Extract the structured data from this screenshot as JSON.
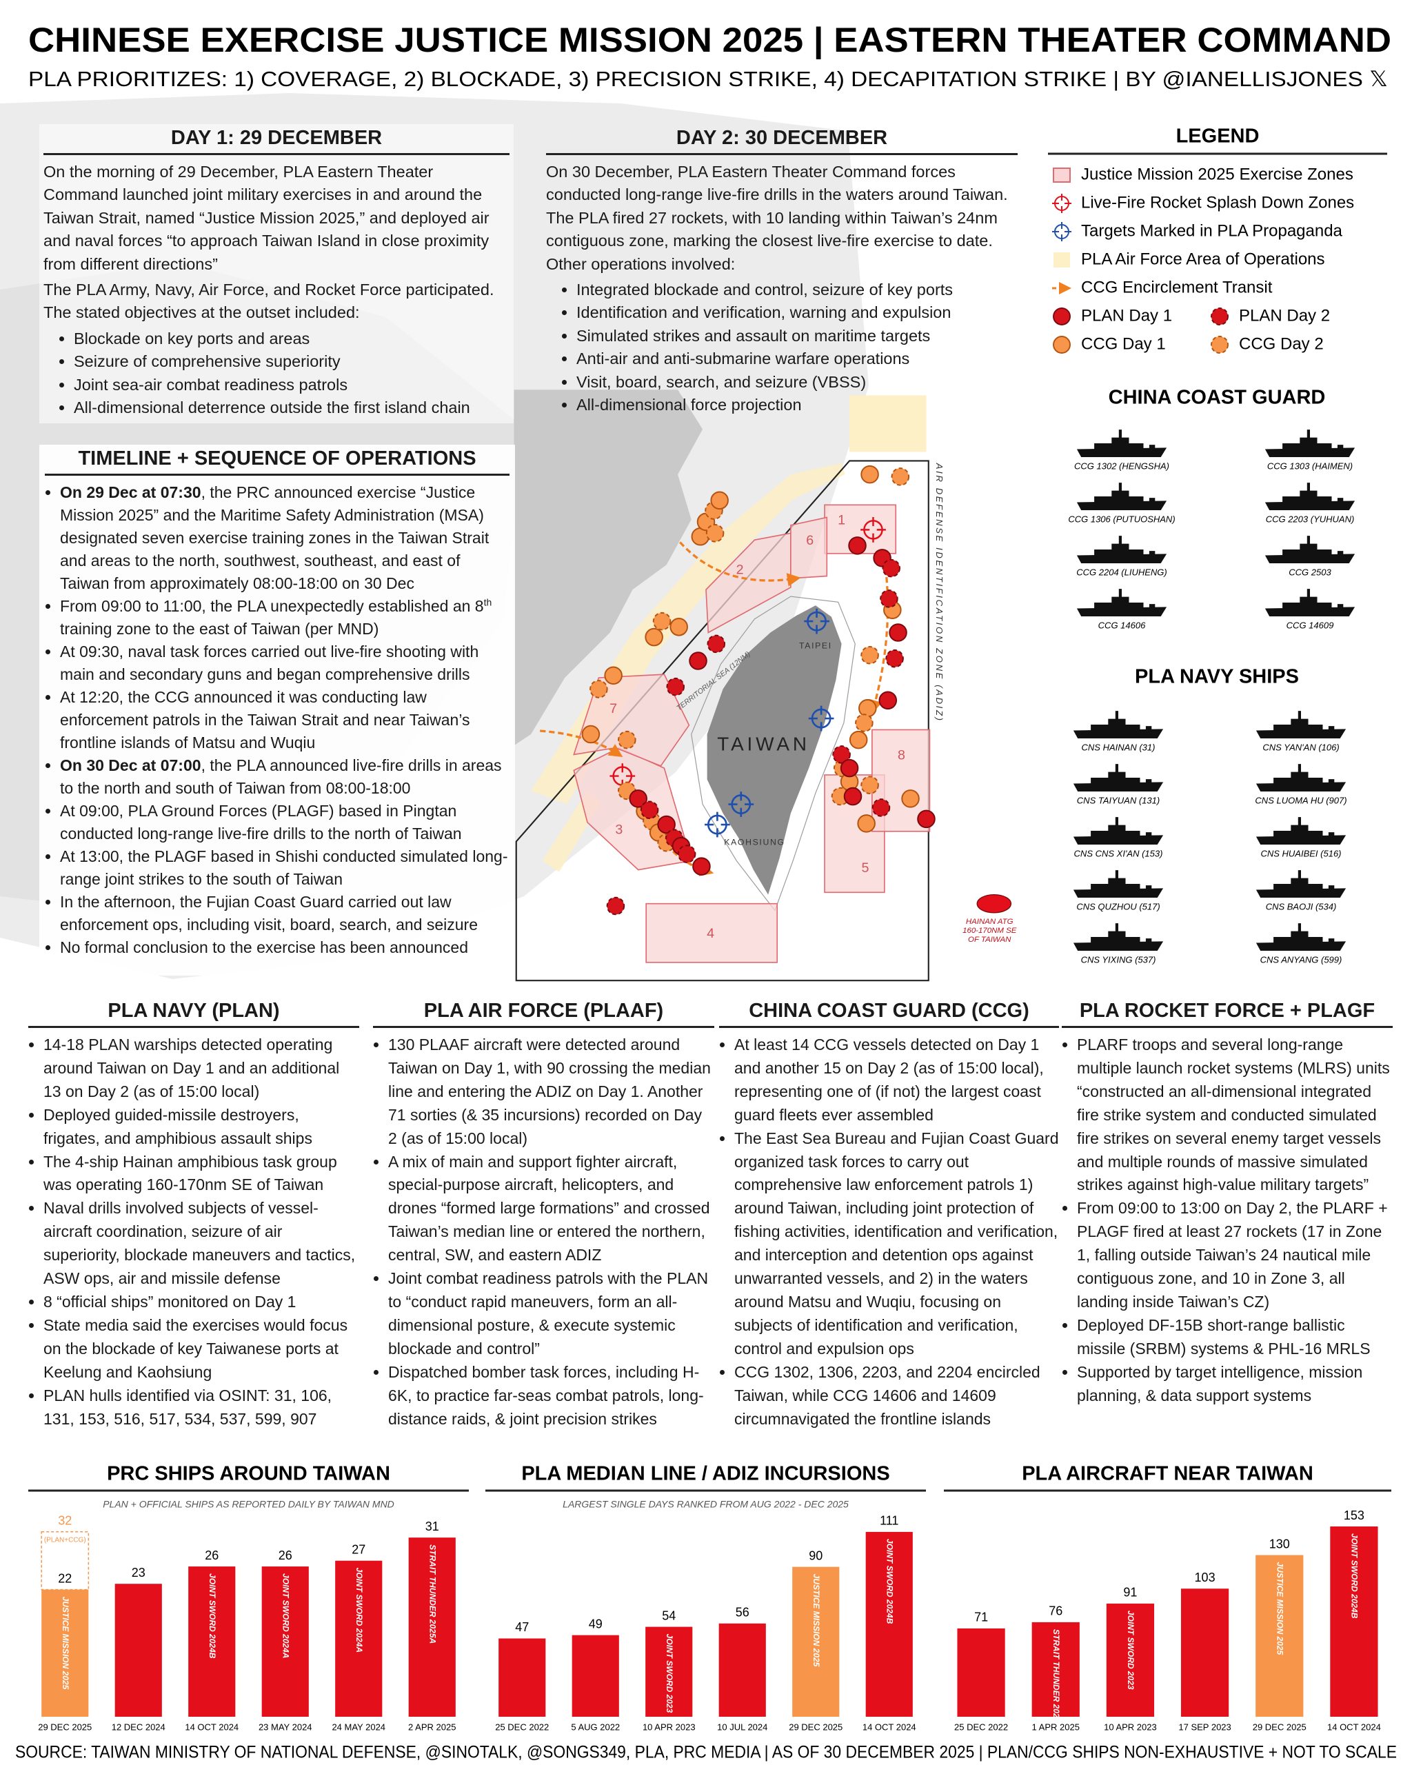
{
  "header": {
    "title": "CHINESE EXERCISE JUSTICE MISSION 2025 | EASTERN THEATER COMMAND",
    "subtitle": "PLA PRIORITIZES: 1) COVERAGE, 2) BLOCKADE, 3) PRECISION STRIKE, 4) DECAPITATION STRIKE | BY @IANELLISJONES 𝕏"
  },
  "day1": {
    "title": "DAY 1: 29 DECEMBER",
    "paragraphs": [
      "On the morning of 29 December, PLA Eastern Theater Command launched joint military exercises in and around the Taiwan Strait, named “Justice Mission 2025,” and deployed air and naval forces “to approach Taiwan Island in close proximity from different directions”",
      "The PLA Army, Navy, Air Force, and Rocket Force participated. The stated objectives at the outset included:"
    ],
    "bullets": [
      "Blockade on key ports and areas",
      "Seizure of comprehensive superiority",
      "Joint sea-air combat readiness patrols",
      "All-dimensional deterrence outside the first island chain"
    ]
  },
  "day2": {
    "title": "DAY 2: 30 DECEMBER",
    "paragraph": "On 30 December, PLA Eastern Theater Command forces conducted long-range live-fire drills in the waters around Taiwan. The PLA fired 27 rockets, with 10 landing within Taiwan’s 24nm contiguous zone, marking the closest live-fire exercise to date. Other operations involved:",
    "bullets": [
      "Integrated blockade and control, seizure of key ports",
      "Identification and verification, warning and expulsion",
      "Simulated strikes and assault on maritime targets",
      "Anti-air and anti-submarine warfare operations",
      "Visit, board, search, and seizure (VBSS)",
      "All-dimensional force projection"
    ]
  },
  "timeline": {
    "title": "TIMELINE + SEQUENCE OF OPERATIONS",
    "items": [
      {
        "lead": "On 29 Dec at 07:30",
        "text": ", the PRC announced exercise “Justice Mission 2025” and the Maritime Safety Administration (MSA) designated seven exercise training zones in the Taiwan Strait and areas to the north, southwest, southeast, and east of Taiwan from approximately 08:00-18:00 on 30 Dec"
      },
      {
        "text": "From 09:00 to 11:00, the PLA unexpectedly established an 8",
        "sup": "th",
        "rest": " training zone to the east of Taiwan (per MND)"
      },
      {
        "text": "At 09:30, naval task forces carried out live-fire shooting with main and secondary guns and began comprehensive drills"
      },
      {
        "text": "At 12:20, the CCG announced it was conducting law enforcement patrols in the Taiwan Strait and near Taiwan’s frontline islands of Matsu and Wuqiu"
      },
      {
        "lead": "On 30 Dec at 07:00",
        "text": ", the PLA announced live-fire drills in areas to the north and south of Taiwan from 08:00-18:00"
      },
      {
        "text": "At 09:00, PLA Ground Forces (PLAGF) based in Pingtan conducted long-range live-fire drills to the north of Taiwan"
      },
      {
        "text": "At 13:00, the PLAGF based in Shishi conducted simulated long-range joint strikes to the south of Taiwan"
      },
      {
        "text": "In the afternoon, the Fujian Coast Guard carried out law enforcement ops, including visit, board, search, and seizure"
      },
      {
        "text": "No formal conclusion to the exercise has been announced"
      }
    ]
  },
  "legend": {
    "title": "LEGEND",
    "items": [
      "Justice Mission 2025 Exercise Zones",
      "Live-Fire Rocket Splash Down Zones",
      "Targets Marked in PLA Propaganda",
      "PLA Air Force Area of Operations",
      "CCG Encirclement Transit",
      "PLAN Day 1",
      "PLAN Day 2",
      "CCG Day 1",
      "CCG Day 2"
    ]
  },
  "ccg_ships": {
    "title": "CHINA COAST GUARD",
    "ships": [
      "CCG 1302 (HENGSHA)",
      "CCG 1303 (HAIMEN)",
      "CCG 1306 (PUTUOSHAN)",
      "CCG 2203 (YUHUAN)",
      "CCG 2204 (LIUHENG)",
      "CCG 2503",
      "CCG 14606",
      "CCG 14609"
    ]
  },
  "navy_ships": {
    "title": "PLA NAVY SHIPS",
    "ships": [
      "CNS HAINAN (31)",
      "CNS YAN'AN (106)",
      "CNS TAIYUAN (131)",
      "CNS LUOMA HU (907)",
      "CNS CNS XI'AN (153)",
      "CNS HUAIBEI (516)",
      "CNS QUZHOU (517)",
      "CNS BAOJI (534)",
      "CNS YIXING (537)",
      "CNS ANYANG (599)"
    ]
  },
  "map": {
    "zones": [
      "1",
      "2",
      "3",
      "4",
      "5",
      "6",
      "7",
      "8"
    ],
    "island": "TAIWAN",
    "cities": [
      "TAIPEI",
      "KAOHSIUNG"
    ],
    "territorial_sea": "TERRITORIAL SEA (12NM)",
    "adiz": "AIR DEFENSE IDENTIFICATION ZONE (ADIZ)",
    "hainan_note": [
      "HAINAN ATG",
      "160-170NM SE",
      "OF TAIWAN"
    ]
  },
  "sections": [
    {
      "title": "PLA NAVY (PLAN)",
      "bullets": [
        "14-18 PLAN warships detected operating around Taiwan on Day 1 and an additional 13 on Day 2 (as of 15:00 local)",
        "Deployed guided-missile destroyers, frigates, and amphibious assault ships",
        "The 4-ship Hainan amphibious task group was operating 160-170nm SE of Taiwan",
        "Naval drills involved subjects of vessel-aircraft coordination, seizure of air superiority, blockade maneuvers and tactics, ASW ops, air and missile defense",
        "8 “official ships” monitored on Day 1",
        "State media said the exercises would focus on the blockade of key Taiwanese ports at Keelung and Kaohsiung",
        "PLAN hulls identified via OSINT: 31, 106, 131, 153, 516, 517, 534, 537, 599, 907"
      ]
    },
    {
      "title": "PLA AIR FORCE (PLAAF)",
      "bullets": [
        "130 PLAAF aircraft were detected around Taiwan on Day 1, with 90 crossing the median line and entering the ADIZ on Day 1. Another 71 sorties (& 35 incursions) recorded on Day 2 (as of 15:00 local)",
        "A mix of main and support fighter aircraft, special-purpose aircraft, helicopters, and drones “formed large formations” and crossed Taiwan’s median line or entered the northern, central, SW, and eastern ADIZ",
        "Joint combat readiness patrols with the PLAN to “conduct rapid maneuvers, form an all-dimensional posture, & execute systemic blockade and control”",
        "Dispatched bomber task forces, including H-6K, to practice far-seas combat patrols, long-distance raids, & joint precision strikes"
      ]
    },
    {
      "title": "CHINA COAST GUARD (CCG)",
      "bullets": [
        "At least 14 CCG vessels detected on Day 1 and another 15 on Day 2 (as of 15:00 local), representing one of (if not) the largest coast guard fleets ever assembled",
        "The East Sea Bureau and Fujian Coast Guard organized task forces to carry out comprehensive law enforcement patrols 1) around Taiwan, including joint protection of fishing activities, identification and verification, and interception and detention ops against unwarranted vessels, and 2) in the waters around Matsu and Wuqiu, focusing on subjects of identification and verification, control and expulsion ops",
        "CCG 1302, 1306, 2203, and 2204 encircled Taiwan, while CCG 14606 and 14609 circumnavigated the frontline islands"
      ]
    },
    {
      "title": "PLA ROCKET FORCE + PLAGF",
      "bullets": [
        "PLARF troops and several long-range multiple launch rocket systems (MLRS) units “constructed an all-dimensional integrated fire strike system and conducted simulated fire strikes on several enemy target vessels and multiple rounds of massive simulated strikes against high-value military targets”",
        "From 09:00 to 13:00 on Day 2, the PLARF + PLAGF fired at least 27 rockets (17 in Zone 1, falling outside Taiwan’s 24 nautical mile contiguous zone, and 10 in Zone 3, all landing inside Taiwan’s CZ)",
        "Deployed DF-15B short-range ballistic missile (SRBM) systems & PHL-16 MRLS",
        "Supported by target intelligence, mission planning, & data support systems"
      ]
    }
  ],
  "chart_data": [
    {
      "type": "bar",
      "title": "PRC SHIPS AROUND TAIWAN",
      "subtitle": "PLAN + OFFICIAL SHIPS AS REPORTED DAILY BY TAIWAN MND",
      "categories": [
        "29 DEC 2025",
        "12 DEC 2024",
        "14 OCT 2024",
        "23 MAY 2024",
        "24 MAY 2024",
        "2 APR 2025"
      ],
      "values": [
        22,
        23,
        26,
        26,
        27,
        31
      ],
      "colors": [
        "#f7964a",
        "#e3101b",
        "#e3101b",
        "#e3101b",
        "#e3101b",
        "#e3101b"
      ],
      "bar_labels": [
        "JUSTICE MISSION 2025",
        null,
        "JOINT SWORD 2024B",
        "JOINT SWORD 2024A",
        "JOINT SWORD 2024A",
        "STRAIT THUNDER 2025A"
      ],
      "outline": {
        "values": [
          32,
          null,
          null,
          null,
          null,
          null
        ],
        "label": "(PLAN+CCG)"
      },
      "ylim": [
        0,
        34
      ]
    },
    {
      "type": "bar",
      "title": "PLA MEDIAN LINE / ADIZ INCURSIONS",
      "subtitle": "LARGEST SINGLE DAYS RANKED FROM AUG 2022 - DEC 2025",
      "categories": [
        "25 DEC 2022",
        "5 AUG 2022",
        "10 APR 2023",
        "10 JUL 2024",
        "29 DEC 2025",
        "14 OCT 2024"
      ],
      "values": [
        47,
        49,
        54,
        56,
        90,
        111
      ],
      "colors": [
        "#e3101b",
        "#e3101b",
        "#e3101b",
        "#e3101b",
        "#f7964a",
        "#e3101b"
      ],
      "bar_labels": [
        null,
        null,
        "JOINT SWORD 2023",
        null,
        "JUSTICE MISSION 2025",
        "JOINT SWORD 2024B"
      ],
      "ylim": [
        0,
        118
      ]
    },
    {
      "type": "bar",
      "title": "PLA AIRCRAFT NEAR TAIWAN",
      "categories": [
        "25 DEC 2022",
        "1 APR 2025",
        "10 APR 2023",
        "17 SEP 2023",
        "29 DEC 2025",
        "14 OCT 2024"
      ],
      "values": [
        71,
        76,
        91,
        103,
        130,
        153
      ],
      "colors": [
        "#e3101b",
        "#e3101b",
        "#e3101b",
        "#e3101b",
        "#f7964a",
        "#e3101b"
      ],
      "bar_labels": [
        null,
        "STRAIT THUNDER 2025A",
        "JOINT SWORD 2023",
        null,
        "JUSTICE MISSION 2025",
        "JOINT SWORD 2024B"
      ],
      "ylim": [
        0,
        158
      ]
    }
  ],
  "footer": {
    "source": "SOURCE: TAIWAN MINISTRY OF NATIONAL DEFENSE, @SINOTALK, @SONGS349, PLA, PRC MEDIA | AS OF 30 DECEMBER 2025 | PLAN/CCG SHIPS NON-EXHAUSTIVE + NOT TO SCALE"
  }
}
